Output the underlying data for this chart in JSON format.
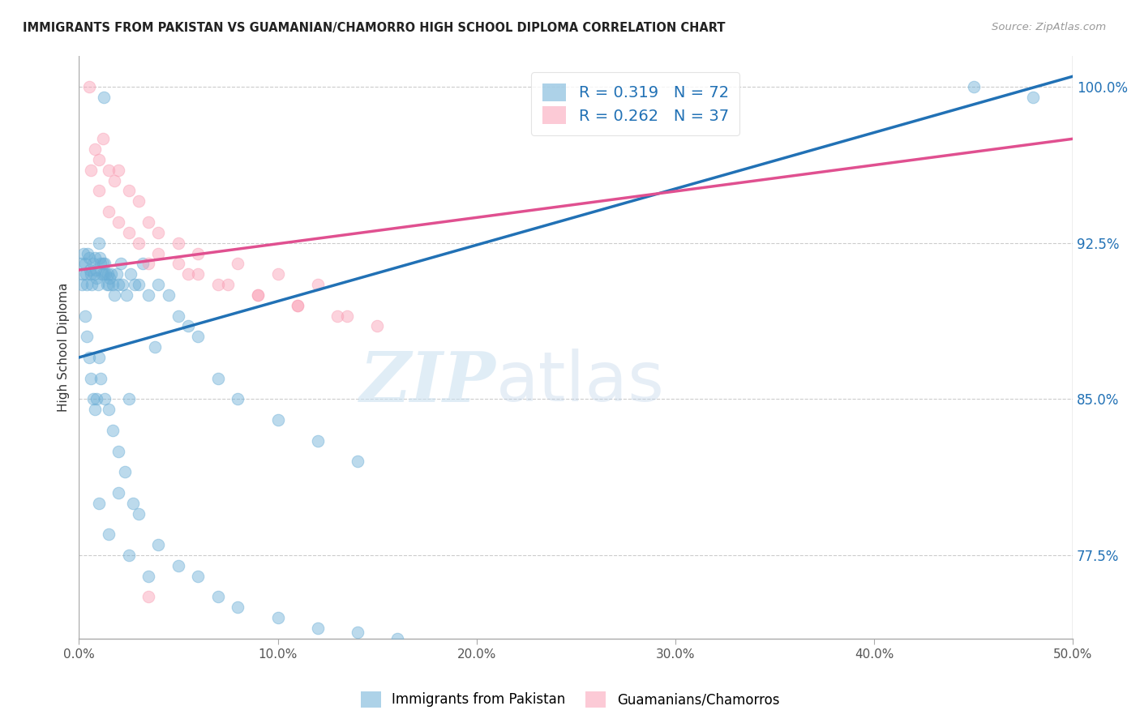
{
  "title": "IMMIGRANTS FROM PAKISTAN VS GUAMANIAN/CHAMORRO HIGH SCHOOL DIPLOMA CORRELATION CHART",
  "source": "Source: ZipAtlas.com",
  "ylabel": "High School Diploma",
  "xlim": [
    0.0,
    50.0
  ],
  "ylim": [
    73.5,
    101.5
  ],
  "yticks": [
    77.5,
    85.0,
    92.5,
    100.0
  ],
  "xticks": [
    0.0,
    10.0,
    20.0,
    30.0,
    40.0,
    50.0
  ],
  "blue_R": 0.319,
  "blue_N": 72,
  "pink_R": 0.262,
  "pink_N": 37,
  "blue_color": "#6baed6",
  "pink_color": "#fa9fb5",
  "blue_line_color": "#2171b5",
  "pink_line_color": "#e05090",
  "legend_label_blue": "Immigrants from Pakistan",
  "legend_label_pink": "Guamanians/Chamorros",
  "watermark_zip": "ZIP",
  "watermark_atlas": "atlas",
  "blue_line_x0": 0.0,
  "blue_line_y0": 87.0,
  "blue_line_x1": 50.0,
  "blue_line_y1": 100.5,
  "pink_line_x0": 0.0,
  "pink_line_y0": 91.2,
  "pink_line_x1": 50.0,
  "pink_line_y1": 97.5,
  "blue_x": [
    0.1,
    0.15,
    0.2,
    0.25,
    0.3,
    0.35,
    0.4,
    0.45,
    0.5,
    0.55,
    0.6,
    0.65,
    0.7,
    0.75,
    0.8,
    0.85,
    0.9,
    0.95,
    1.0,
    1.05,
    1.1,
    1.15,
    1.2,
    1.25,
    1.3,
    1.35,
    1.4,
    1.45,
    1.5,
    1.55,
    1.6,
    1.7,
    1.8,
    1.9,
    2.0,
    2.1,
    2.2,
    2.4,
    2.6,
    2.8,
    3.0,
    3.2,
    3.5,
    4.0,
    4.5,
    5.0,
    5.5,
    6.0,
    7.0,
    8.0,
    10.0,
    12.0,
    14.0,
    1.25,
    2.5,
    3.8,
    0.3,
    0.4,
    0.5,
    0.6,
    0.7,
    0.8,
    0.9,
    1.0,
    1.1,
    1.3,
    1.5,
    1.7,
    2.0,
    2.3,
    2.7
  ],
  "blue_y": [
    91.5,
    90.5,
    91.0,
    92.0,
    91.5,
    91.0,
    90.5,
    92.0,
    91.8,
    91.2,
    91.0,
    90.5,
    91.5,
    91.0,
    91.8,
    91.2,
    90.8,
    90.5,
    92.5,
    91.8,
    91.5,
    91.0,
    91.5,
    91.0,
    91.5,
    91.0,
    90.5,
    91.0,
    90.5,
    90.8,
    91.0,
    90.5,
    90.0,
    91.0,
    90.5,
    91.5,
    90.5,
    90.0,
    91.0,
    90.5,
    90.5,
    91.5,
    90.0,
    90.5,
    90.0,
    89.0,
    88.5,
    88.0,
    86.0,
    85.0,
    84.0,
    83.0,
    82.0,
    99.5,
    85.0,
    87.5,
    89.0,
    88.0,
    87.0,
    86.0,
    85.0,
    84.5,
    85.0,
    87.0,
    86.0,
    85.0,
    84.5,
    83.5,
    82.5,
    81.5,
    80.0
  ],
  "blue_x_outliers": [
    1.5,
    2.5,
    3.5,
    1.0,
    2.0,
    3.0,
    4.0,
    5.0,
    6.0,
    7.0,
    8.0,
    10.0,
    12.0,
    14.0,
    16.0,
    45.0,
    48.0
  ],
  "blue_y_outliers": [
    78.5,
    77.5,
    76.5,
    80.0,
    80.5,
    79.5,
    78.0,
    77.0,
    76.5,
    75.5,
    75.0,
    74.5,
    74.0,
    73.8,
    73.5,
    100.0,
    99.5
  ],
  "pink_x": [
    0.5,
    0.8,
    1.0,
    1.2,
    1.5,
    1.8,
    2.0,
    2.5,
    3.0,
    3.5,
    4.0,
    5.0,
    6.0,
    8.0,
    10.0,
    12.0,
    0.6,
    1.0,
    1.5,
    2.0,
    2.5,
    3.0,
    4.0,
    5.0,
    6.0,
    7.5,
    9.0,
    11.0,
    13.0,
    15.0,
    3.5,
    5.5,
    7.0,
    9.0,
    11.0,
    13.5,
    3.5
  ],
  "pink_y": [
    100.0,
    97.0,
    96.5,
    97.5,
    96.0,
    95.5,
    96.0,
    95.0,
    94.5,
    93.5,
    93.0,
    92.5,
    92.0,
    91.5,
    91.0,
    90.5,
    96.0,
    95.0,
    94.0,
    93.5,
    93.0,
    92.5,
    92.0,
    91.5,
    91.0,
    90.5,
    90.0,
    89.5,
    89.0,
    88.5,
    91.5,
    91.0,
    90.5,
    90.0,
    89.5,
    89.0,
    75.5
  ]
}
